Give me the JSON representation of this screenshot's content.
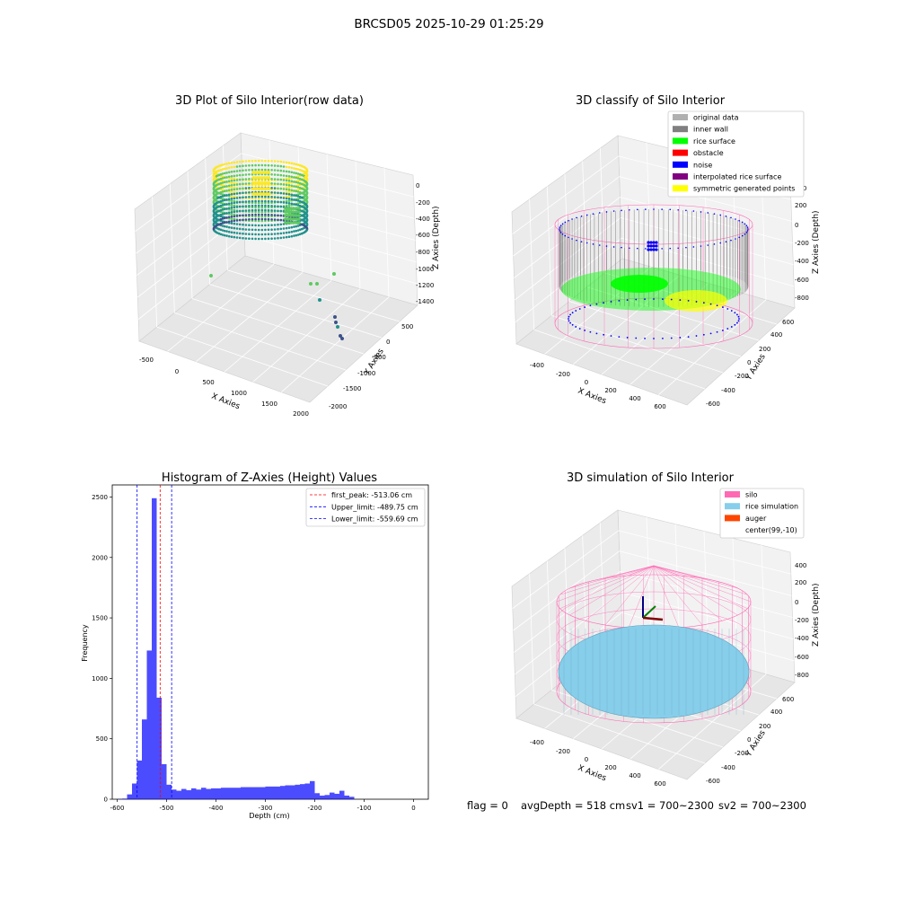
{
  "suptitle": "BRCSD05 2025-10-29 01:25:29",
  "footer": {
    "flag": "flag = 0",
    "avg_depth": "avgDepth = 518 cm",
    "sv1": "sv1 = 700~2300",
    "sv2": "sv2 = 700~2300"
  },
  "colors": {
    "viridis": [
      "#440154",
      "#3b528b",
      "#21918c",
      "#5ec962",
      "#fde725"
    ],
    "rice_surface": "#00ff00",
    "inner_wall": "#808080",
    "noise": "#0000ff",
    "obstacle": "#ff0000",
    "interpolated": "#800080",
    "symmetric": "#ffff00",
    "original": "#b0b0b0",
    "silo": "#ff69b4",
    "rice_sim": "#87ceeb",
    "auger": "#ff4500",
    "hist_bar": "#0000ff"
  },
  "chart_data": [
    {
      "type": "scatter",
      "title": "3D Plot of Silo Interior(row data)",
      "xlabel": "X Axies",
      "ylabel": "Y Axies",
      "zlabel": "Z Axies (Depth)",
      "x_ticks": [
        "-500",
        "0",
        "500",
        "1000",
        "1500",
        "2000"
      ],
      "y_ticks": [
        "500",
        "0",
        "-500",
        "-1000",
        "-1500",
        "-2000"
      ],
      "z_ticks": [
        "0",
        "-200",
        "-400",
        "-600",
        "-800",
        "-1000",
        "-1200",
        "-1400"
      ],
      "outliers": [
        {
          "x": 100,
          "y": 600,
          "z": -1100
        },
        {
          "x": 800,
          "y": 300,
          "z": -1120
        },
        {
          "x": 900,
          "y": 250,
          "z": -1120
        },
        {
          "x": 1300,
          "y": 500,
          "z": -1100
        },
        {
          "x": 1200,
          "y": -300,
          "z": -1250
        },
        {
          "x": 1500,
          "y": -1100,
          "z": -1300
        },
        {
          "x": 1550,
          "y": -1200,
          "z": -1320
        },
        {
          "x": 1600,
          "y": -1350,
          "z": -1350
        },
        {
          "x": 1650,
          "y": -1450,
          "z": -1380
        }
      ]
    },
    {
      "type": "scatter",
      "title": "3D classify of Silo Interior",
      "xlabel": "X Axies",
      "ylabel": "Y Axies",
      "zlabel": "Z Axies (Depth)",
      "x_ticks": [
        "-400",
        "-200",
        "0",
        "200",
        "400",
        "600"
      ],
      "y_ticks": [
        "600",
        "400",
        "200",
        "0",
        "-200",
        "-400",
        "-600"
      ],
      "z_ticks": [
        "400",
        "200",
        "0",
        "-200",
        "-400",
        "-600",
        "-800"
      ],
      "legend": [
        {
          "label": "original data",
          "color": "#b0b0b0"
        },
        {
          "label": "inner wall",
          "color": "#808080"
        },
        {
          "label": "rice surface",
          "color": "#00ff00"
        },
        {
          "label": "obstacle",
          "color": "#ff0000"
        },
        {
          "label": "noise",
          "color": "#0000ff"
        },
        {
          "label": "interpolated rice surface",
          "color": "#800080"
        },
        {
          "label": "symmetric generated points",
          "color": "#ffff00"
        }
      ],
      "legend_loc": "upper right"
    },
    {
      "type": "bar",
      "title": "Histogram of Z-Axies (Height) Values",
      "xlabel": "Depth (cm)",
      "ylabel": "Frequency",
      "xlim": [
        -610,
        30
      ],
      "ylim": [
        0,
        2600
      ],
      "x_ticks": [
        -600,
        -500,
        -400,
        -300,
        -200,
        -100,
        0
      ],
      "y_ticks": [
        0,
        500,
        1000,
        1500,
        2000,
        2500
      ],
      "bin_start": -600,
      "bin_width": 10,
      "values": [
        2,
        5,
        40,
        130,
        320,
        660,
        1230,
        2490,
        840,
        290,
        120,
        80,
        70,
        85,
        75,
        90,
        80,
        95,
        85,
        90,
        90,
        95,
        95,
        95,
        95,
        100,
        100,
        100,
        100,
        100,
        105,
        105,
        105,
        110,
        115,
        115,
        120,
        125,
        130,
        150,
        50,
        30,
        35,
        55,
        45,
        70,
        30,
        20
      ],
      "vlines": [
        {
          "x": -513.06,
          "color": "#ff0000",
          "label": "first_peak: -513.06 cm"
        },
        {
          "x": -489.75,
          "color": "#0000ff",
          "label": "Upper_limit: -489.75 cm"
        },
        {
          "x": -559.69,
          "color": "#0000ff",
          "label": "Lower_limit: -559.69 cm"
        }
      ],
      "legend_loc": "upper right"
    },
    {
      "type": "scatter",
      "title": "3D simulation of Silo Interior",
      "xlabel": "X Axies",
      "ylabel": "Y Axies",
      "zlabel": "Z Axies (Depth)",
      "x_ticks": [
        "-400",
        "-200",
        "0",
        "200",
        "400",
        "600"
      ],
      "y_ticks": [
        "600",
        "400",
        "200",
        "0",
        "-200",
        "-400",
        "-600"
      ],
      "z_ticks": [
        "400",
        "200",
        "0",
        "-200",
        "-400",
        "-600",
        "-800"
      ],
      "legend": [
        {
          "label": "silo",
          "color": "#ff69b4"
        },
        {
          "label": "rice simulation",
          "color": "#87ceeb"
        },
        {
          "label": "auger",
          "color": "#ff4500"
        },
        {
          "label": "center(99,-10)",
          "color": ""
        }
      ],
      "legend_loc": "upper right"
    }
  ]
}
